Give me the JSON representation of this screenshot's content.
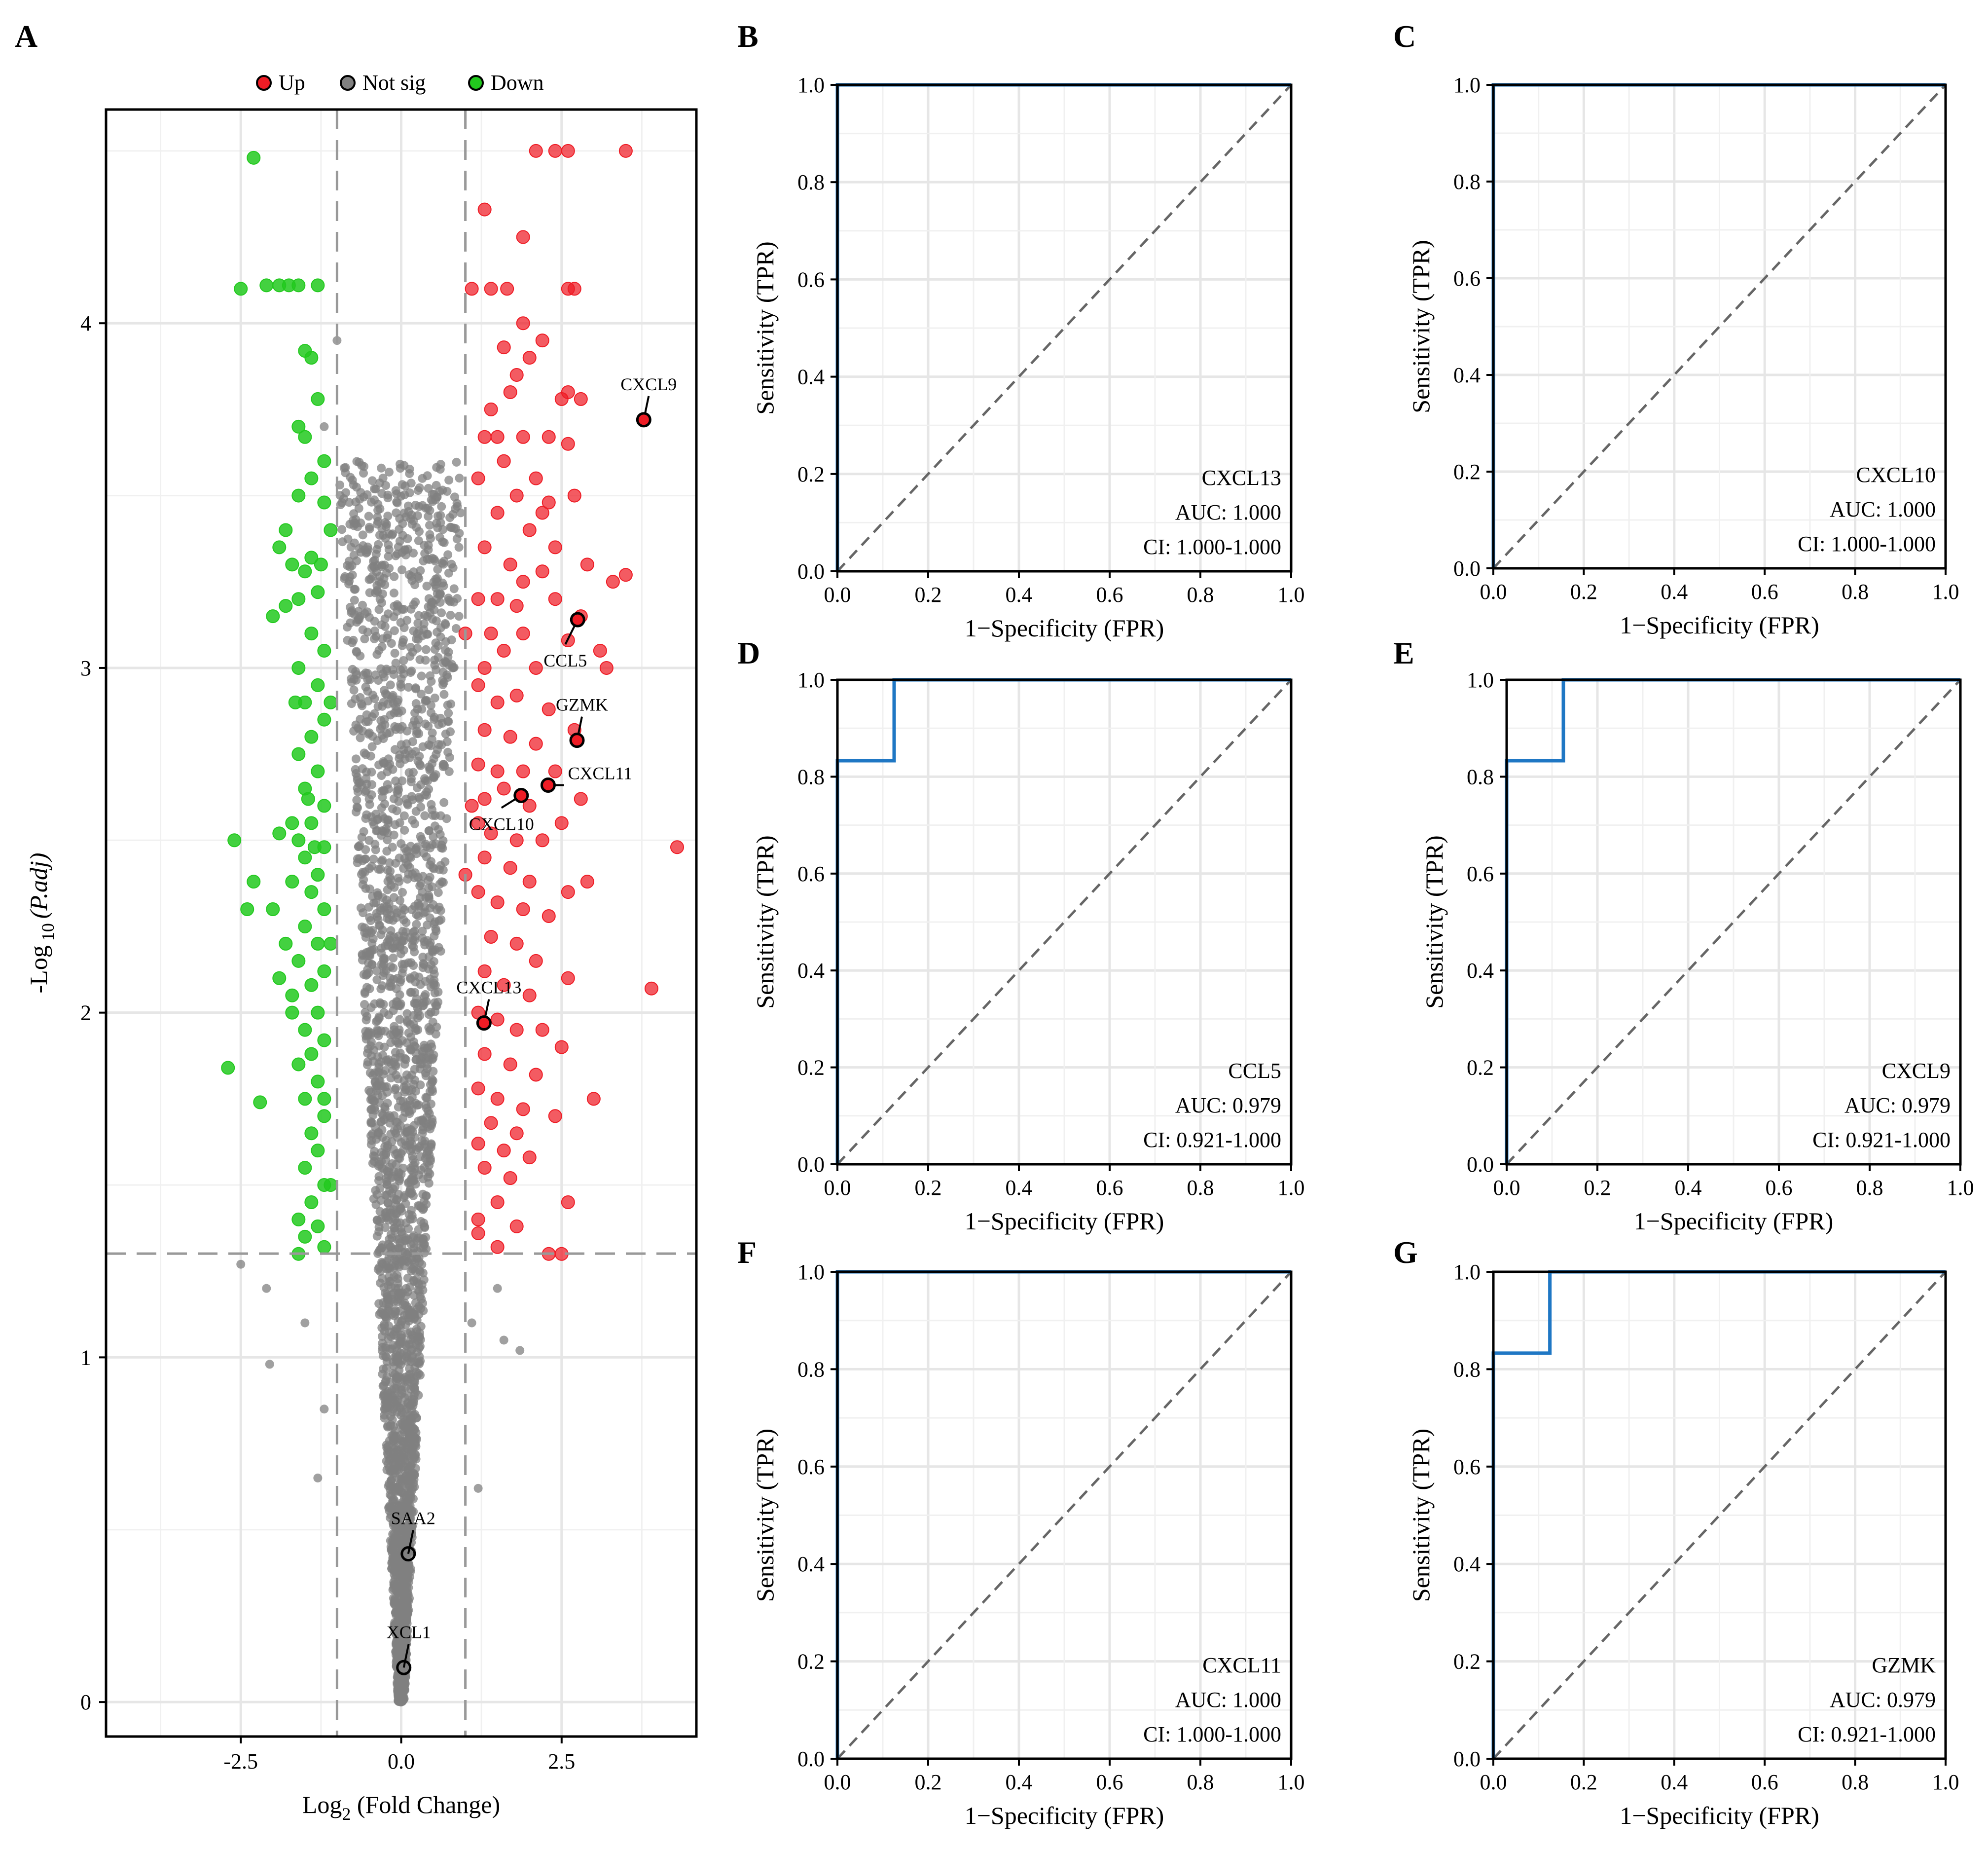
{
  "figure": {
    "colors": {
      "up": "#ee1c25",
      "notsig": "#808080",
      "down": "#22c91e",
      "roc_line": "#1f77c4",
      "grid": "#e6e6e6",
      "diag": "#666666"
    }
  },
  "chart_data": [
    {
      "panel": "A",
      "type": "scatter",
      "subtype": "volcano",
      "xlabel_base": "Log",
      "xlabel_sub": "2",
      "xlabel_rest": " (Fold Change)",
      "ylabel_base": "-Log",
      "ylabel_sub": "10",
      "ylabel_rest": "(P.adj)",
      "xlim": [
        -4.6,
        4.6
      ],
      "ylim": [
        -0.1,
        4.62
      ],
      "xticks": [
        -2.5,
        0.0,
        2.5
      ],
      "xtick_labels": [
        "-2.5",
        "0.0",
        "2.5"
      ],
      "yticks": [
        0,
        1,
        2,
        3,
        4
      ],
      "ytick_labels": [
        "0",
        "1",
        "2",
        "3",
        "4"
      ],
      "fc_threshold": 1.0,
      "p_threshold": 1.301,
      "legend": [
        {
          "key": "up",
          "label": "Up"
        },
        {
          "key": "notsig",
          "label": "Not sig"
        },
        {
          "key": "down",
          "label": "Down"
        }
      ],
      "up_points": [
        [
          2.1,
          4.5
        ],
        [
          2.4,
          4.5
        ],
        [
          2.6,
          4.5
        ],
        [
          3.5,
          4.5
        ],
        [
          1.3,
          4.33
        ],
        [
          1.9,
          4.25
        ],
        [
          1.1,
          4.1
        ],
        [
          1.4,
          4.1
        ],
        [
          1.65,
          4.1
        ],
        [
          2.6,
          4.1
        ],
        [
          2.7,
          4.1
        ],
        [
          1.9,
          4.0
        ],
        [
          2.2,
          3.95
        ],
        [
          1.6,
          3.93
        ],
        [
          1.8,
          3.85
        ],
        [
          2.0,
          3.9
        ],
        [
          1.4,
          3.75
        ],
        [
          1.7,
          3.8
        ],
        [
          2.5,
          3.78
        ],
        [
          2.6,
          3.8
        ],
        [
          2.8,
          3.78
        ],
        [
          1.3,
          3.67
        ],
        [
          1.5,
          3.67
        ],
        [
          1.9,
          3.67
        ],
        [
          2.3,
          3.67
        ],
        [
          2.6,
          3.65
        ],
        [
          1.2,
          3.55
        ],
        [
          1.6,
          3.6
        ],
        [
          2.1,
          3.55
        ],
        [
          2.7,
          3.5
        ],
        [
          1.8,
          3.5
        ],
        [
          2.3,
          3.48
        ],
        [
          1.5,
          3.45
        ],
        [
          2.0,
          3.4
        ],
        [
          2.4,
          3.35
        ],
        [
          1.3,
          3.35
        ],
        [
          1.7,
          3.3
        ],
        [
          1.9,
          3.25
        ],
        [
          2.2,
          3.28
        ],
        [
          2.9,
          3.3
        ],
        [
          3.3,
          3.25
        ],
        [
          1.2,
          3.2
        ],
        [
          1.5,
          3.2
        ],
        [
          1.8,
          3.18
        ],
        [
          2.4,
          3.2
        ],
        [
          2.8,
          3.15
        ],
        [
          1.4,
          3.1
        ],
        [
          1.9,
          3.1
        ],
        [
          2.6,
          3.08
        ],
        [
          1.3,
          3.0
        ],
        [
          1.6,
          3.05
        ],
        [
          2.1,
          3.0
        ],
        [
          3.1,
          3.05
        ],
        [
          3.2,
          3.0
        ],
        [
          1.2,
          2.95
        ],
        [
          1.5,
          2.9
        ],
        [
          1.8,
          2.92
        ],
        [
          2.3,
          2.88
        ],
        [
          2.7,
          2.82
        ],
        [
          1.3,
          2.82
        ],
        [
          1.7,
          2.8
        ],
        [
          2.1,
          2.78
        ],
        [
          1.2,
          2.72
        ],
        [
          1.5,
          2.7
        ],
        [
          1.9,
          2.7
        ],
        [
          2.4,
          2.7
        ],
        [
          1.3,
          2.62
        ],
        [
          1.6,
          2.65
        ],
        [
          2.0,
          2.6
        ],
        [
          2.5,
          2.55
        ],
        [
          1.2,
          2.55
        ],
        [
          1.4,
          2.52
        ],
        [
          1.8,
          2.5
        ],
        [
          2.2,
          2.5
        ],
        [
          1.3,
          2.45
        ],
        [
          1.7,
          2.42
        ],
        [
          2.0,
          2.38
        ],
        [
          2.6,
          2.35
        ],
        [
          1.2,
          2.35
        ],
        [
          1.5,
          2.32
        ],
        [
          1.9,
          2.3
        ],
        [
          2.3,
          2.28
        ],
        [
          1.4,
          2.22
        ],
        [
          1.8,
          2.2
        ],
        [
          2.1,
          2.15
        ],
        [
          2.6,
          2.1
        ],
        [
          1.3,
          2.12
        ],
        [
          1.6,
          2.08
        ],
        [
          2.0,
          2.05
        ],
        [
          1.2,
          2.0
        ],
        [
          1.5,
          1.98
        ],
        [
          1.8,
          1.95
        ],
        [
          2.2,
          1.95
        ],
        [
          2.5,
          1.9
        ],
        [
          1.3,
          1.88
        ],
        [
          1.7,
          1.85
        ],
        [
          2.1,
          1.82
        ],
        [
          1.2,
          1.78
        ],
        [
          1.5,
          1.75
        ],
        [
          1.9,
          1.72
        ],
        [
          2.4,
          1.7
        ],
        [
          1.4,
          1.68
        ],
        [
          1.8,
          1.65
        ],
        [
          1.2,
          1.62
        ],
        [
          1.6,
          1.6
        ],
        [
          2.0,
          1.58
        ],
        [
          1.3,
          1.55
        ],
        [
          1.7,
          1.52
        ],
        [
          1.5,
          1.45
        ],
        [
          2.6,
          1.45
        ],
        [
          1.2,
          1.4
        ],
        [
          1.8,
          1.38
        ],
        [
          1.2,
          1.36
        ],
        [
          1.5,
          1.32
        ],
        [
          2.3,
          1.3
        ],
        [
          2.5,
          1.3
        ],
        [
          3.0,
          1.75
        ],
        [
          2.9,
          2.38
        ],
        [
          4.3,
          2.48
        ],
        [
          3.9,
          2.07
        ],
        [
          3.5,
          3.27
        ],
        [
          2.8,
          2.62
        ],
        [
          2.2,
          3.45
        ],
        [
          1.0,
          3.1
        ],
        [
          1.1,
          2.6
        ],
        [
          1.0,
          2.4
        ]
      ],
      "down_points": [
        [
          -2.3,
          4.48
        ],
        [
          -2.5,
          4.1
        ],
        [
          -2.1,
          4.11
        ],
        [
          -1.9,
          4.11
        ],
        [
          -1.75,
          4.11
        ],
        [
          -1.6,
          4.11
        ],
        [
          -1.3,
          4.11
        ],
        [
          -1.5,
          3.92
        ],
        [
          -1.4,
          3.9
        ],
        [
          -1.3,
          3.78
        ],
        [
          -1.6,
          3.7
        ],
        [
          -1.5,
          3.67
        ],
        [
          -1.2,
          3.6
        ],
        [
          -1.4,
          3.55
        ],
        [
          -1.6,
          3.5
        ],
        [
          -1.2,
          3.48
        ],
        [
          -1.8,
          3.4
        ],
        [
          -1.9,
          3.35
        ],
        [
          -1.4,
          3.32
        ],
        [
          -1.7,
          3.3
        ],
        [
          -1.5,
          3.28
        ],
        [
          -1.3,
          3.22
        ],
        [
          -1.6,
          3.2
        ],
        [
          -2.0,
          3.15
        ],
        [
          -1.8,
          3.18
        ],
        [
          -1.4,
          3.1
        ],
        [
          -1.2,
          3.05
        ],
        [
          -1.6,
          3.0
        ],
        [
          -1.3,
          2.95
        ],
        [
          -1.5,
          2.9
        ],
        [
          -1.2,
          2.85
        ],
        [
          -1.4,
          2.8
        ],
        [
          -1.6,
          2.75
        ],
        [
          -1.3,
          2.7
        ],
        [
          -1.5,
          2.65
        ],
        [
          -1.2,
          2.6
        ],
        [
          -1.4,
          2.55
        ],
        [
          -1.7,
          2.55
        ],
        [
          -1.9,
          2.52
        ],
        [
          -1.6,
          2.5
        ],
        [
          -1.2,
          2.48
        ],
        [
          -1.5,
          2.45
        ],
        [
          -1.3,
          2.4
        ],
        [
          -1.7,
          2.38
        ],
        [
          -1.4,
          2.35
        ],
        [
          -1.2,
          2.3
        ],
        [
          -1.5,
          2.25
        ],
        [
          -1.3,
          2.2
        ],
        [
          -1.6,
          2.15
        ],
        [
          -1.2,
          2.12
        ],
        [
          -1.4,
          2.08
        ],
        [
          -1.7,
          2.05
        ],
        [
          -1.3,
          2.0
        ],
        [
          -1.5,
          1.95
        ],
        [
          -1.2,
          1.92
        ],
        [
          -1.4,
          1.88
        ],
        [
          -1.6,
          1.85
        ],
        [
          -1.3,
          1.8
        ],
        [
          -1.5,
          1.75
        ],
        [
          -1.2,
          1.7
        ],
        [
          -1.4,
          1.65
        ],
        [
          -1.3,
          1.6
        ],
        [
          -1.5,
          1.55
        ],
        [
          -1.2,
          1.5
        ],
        [
          -1.4,
          1.45
        ],
        [
          -1.6,
          1.4
        ],
        [
          -1.3,
          1.38
        ],
        [
          -1.5,
          1.35
        ],
        [
          -1.2,
          1.32
        ],
        [
          -2.6,
          2.5
        ],
        [
          -2.3,
          2.38
        ],
        [
          -2.4,
          2.3
        ],
        [
          -2.7,
          1.84
        ],
        [
          -2.2,
          1.74
        ],
        [
          -1.8,
          2.2
        ],
        [
          -2.0,
          2.3
        ],
        [
          -1.7,
          2.0
        ],
        [
          -1.9,
          2.1
        ],
        [
          -1.1,
          3.4
        ],
        [
          -1.1,
          2.9
        ],
        [
          -1.1,
          2.2
        ],
        [
          -1.1,
          1.5
        ],
        [
          -1.6,
          1.3
        ],
        [
          -1.2,
          1.75
        ],
        [
          -1.45,
          2.62
        ],
        [
          -1.35,
          2.48
        ],
        [
          -1.25,
          3.3
        ],
        [
          -1.65,
          2.9
        ]
      ],
      "labels": [
        {
          "text": "CXCL9",
          "x": 3.78,
          "y": 3.72
        },
        {
          "text": "CCL5",
          "x": 2.75,
          "y": 3.14
        },
        {
          "text": "GZMK",
          "x": 2.74,
          "y": 2.79
        },
        {
          "text": "CXCL11",
          "x": 2.29,
          "y": 2.66
        },
        {
          "text": "CXCL10",
          "x": 1.87,
          "y": 2.63
        },
        {
          "text": "CXCL13",
          "x": 1.29,
          "y": 1.97
        },
        {
          "text": "SAA2",
          "x": 0.11,
          "y": 0.43
        },
        {
          "text": "XCL1",
          "x": 0.04,
          "y": 0.1
        }
      ]
    },
    {
      "panel": "B",
      "type": "line",
      "subtype": "roc",
      "gene": "CXCL13",
      "auc_text": "AUC: 1.000",
      "ci_text": "CI: 1.000-1.000",
      "xlabel": "1−Specificity (FPR)",
      "ylabel": "Sensitivity (TPR)",
      "xlim": [
        0,
        1
      ],
      "ylim": [
        0,
        1
      ],
      "ticks": [
        "0.0",
        "0.2",
        "0.4",
        "0.6",
        "0.8",
        "1.0"
      ],
      "fpr": [
        0,
        0,
        1
      ],
      "tpr": [
        0,
        1,
        1
      ]
    },
    {
      "panel": "C",
      "type": "line",
      "subtype": "roc",
      "gene": "CXCL10",
      "auc_text": "AUC: 1.000",
      "ci_text": "CI: 1.000-1.000",
      "xlabel": "1−Specificity (FPR)",
      "ylabel": "Sensitivity (TPR)",
      "xlim": [
        0,
        1
      ],
      "ylim": [
        0,
        1
      ],
      "ticks": [
        "0.0",
        "0.2",
        "0.4",
        "0.6",
        "0.8",
        "1.0"
      ],
      "fpr": [
        0,
        0,
        1
      ],
      "tpr": [
        0,
        1,
        1
      ]
    },
    {
      "panel": "D",
      "type": "line",
      "subtype": "roc",
      "gene": "CCL5",
      "auc_text": "AUC: 0.979",
      "ci_text": "CI: 0.921-1.000",
      "xlabel": "1−Specificity (FPR)",
      "ylabel": "Sensitivity (TPR)",
      "xlim": [
        0,
        1
      ],
      "ylim": [
        0,
        1
      ],
      "ticks": [
        "0.0",
        "0.2",
        "0.4",
        "0.6",
        "0.8",
        "1.0"
      ],
      "fpr": [
        0,
        0,
        0.125,
        0.125,
        1
      ],
      "tpr": [
        0,
        0.833,
        0.833,
        1,
        1
      ]
    },
    {
      "panel": "E",
      "type": "line",
      "subtype": "roc",
      "gene": "CXCL9",
      "auc_text": "AUC: 0.979",
      "ci_text": "CI: 0.921-1.000",
      "xlabel": "1−Specificity (FPR)",
      "ylabel": "Sensitivity (TPR)",
      "xlim": [
        0,
        1
      ],
      "ylim": [
        0,
        1
      ],
      "ticks": [
        "0.0",
        "0.2",
        "0.4",
        "0.6",
        "0.8",
        "1.0"
      ],
      "fpr": [
        0,
        0,
        0.125,
        0.125,
        1
      ],
      "tpr": [
        0,
        0.833,
        0.833,
        1,
        1
      ]
    },
    {
      "panel": "F",
      "type": "line",
      "subtype": "roc",
      "gene": "CXCL11",
      "auc_text": "AUC: 1.000",
      "ci_text": "CI: 1.000-1.000",
      "xlabel": "1−Specificity (FPR)",
      "ylabel": "Sensitivity (TPR)",
      "xlim": [
        0,
        1
      ],
      "ylim": [
        0,
        1
      ],
      "ticks": [
        "0.0",
        "0.2",
        "0.4",
        "0.6",
        "0.8",
        "1.0"
      ],
      "fpr": [
        0,
        0,
        1
      ],
      "tpr": [
        0,
        1,
        1
      ]
    },
    {
      "panel": "G",
      "type": "line",
      "subtype": "roc",
      "gene": "GZMK",
      "auc_text": "AUC: 0.979",
      "ci_text": "CI: 0.921-1.000",
      "xlabel": "1−Specificity (FPR)",
      "ylabel": "Sensitivity (TPR)",
      "xlim": [
        0,
        1
      ],
      "ylim": [
        0,
        1
      ],
      "ticks": [
        "0.0",
        "0.2",
        "0.4",
        "0.6",
        "0.8",
        "1.0"
      ],
      "fpr": [
        0,
        0,
        0.125,
        0.125,
        1
      ],
      "tpr": [
        0,
        0.833,
        0.833,
        1,
        1
      ]
    }
  ]
}
